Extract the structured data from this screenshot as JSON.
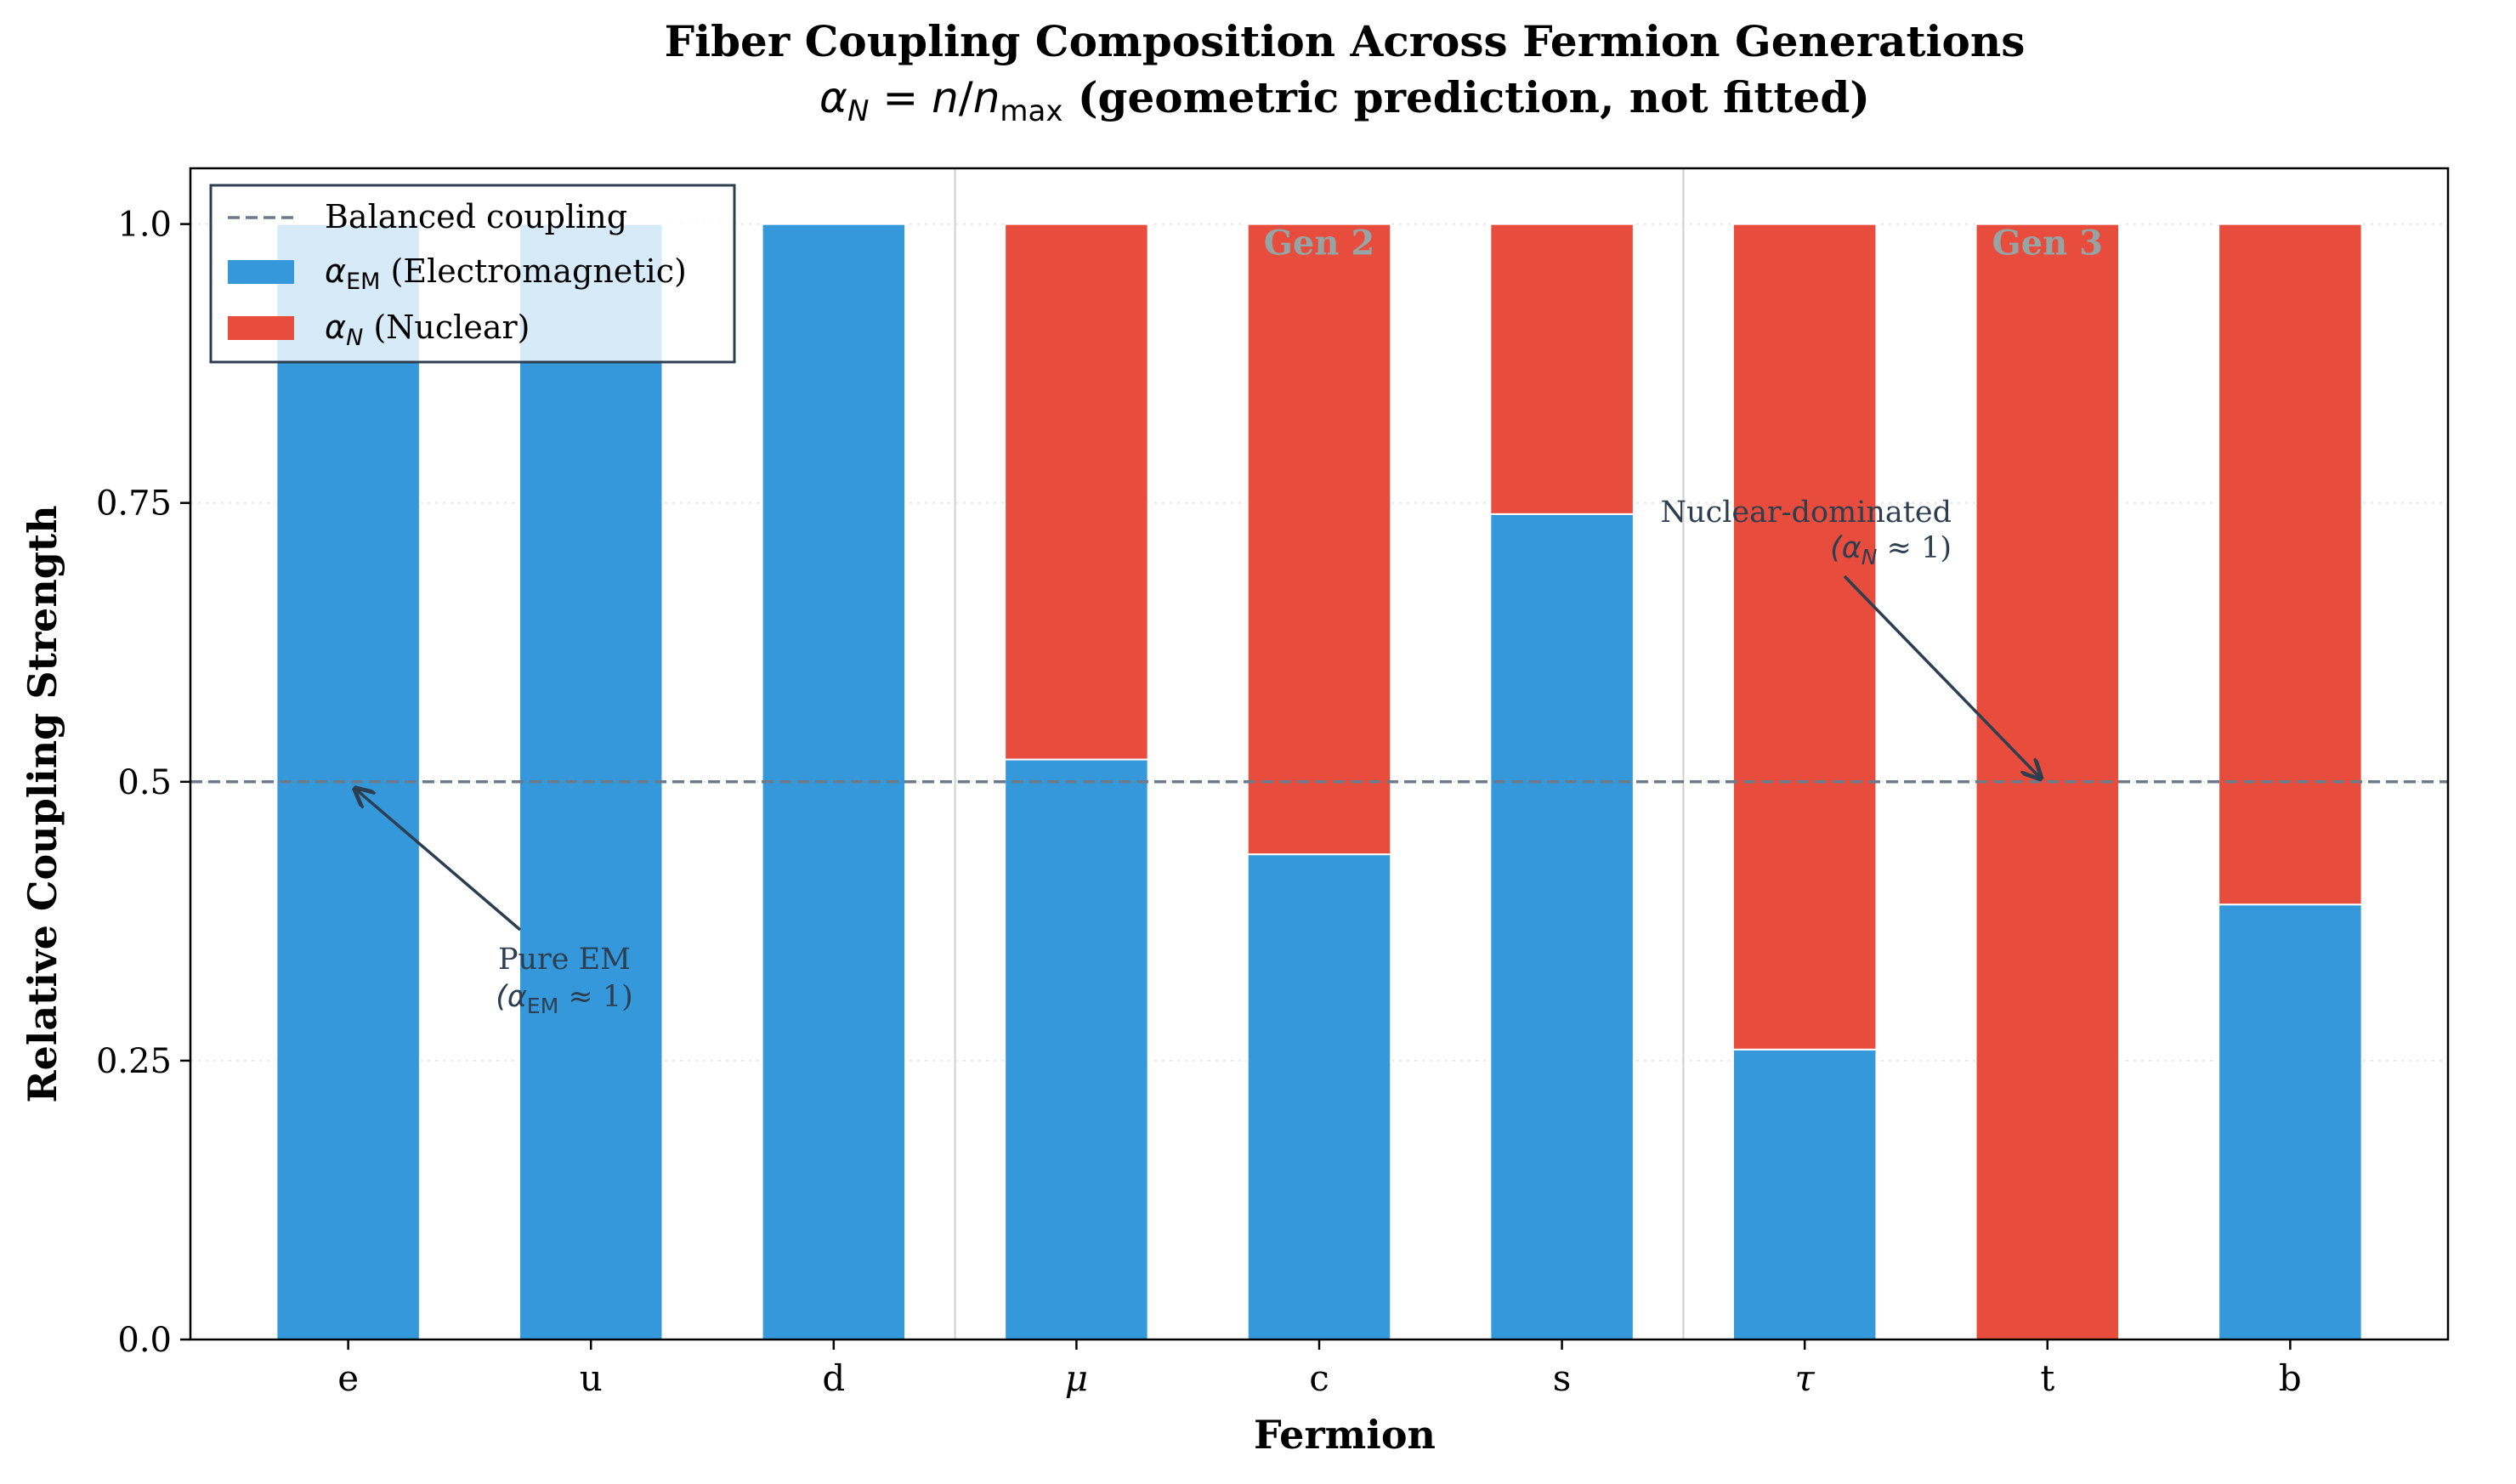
{
  "colors": {
    "em": "#3598db",
    "nuclear": "#e74c3c",
    "balanced_line": "#6c7a89",
    "generation_divider": "#d0d0d0",
    "gen_label": "#95a5a6",
    "annotation": "#2c3e50",
    "grid": "#e8e8e8",
    "axis": "#000000"
  },
  "chart_data": {
    "type": "bar",
    "stacked": true,
    "title": "Fiber Coupling Composition Across Fermion Generations",
    "subtitle_math": "αN = n/nmax",
    "subtitle_text": " (geometric prediction, not fitted)",
    "xlabel": "Fermion",
    "ylabel": "Relative Coupling Strength",
    "ylim": [
      0,
      1.05
    ],
    "yticks": [
      0.0,
      0.25,
      0.5,
      0.75,
      1.0
    ],
    "ytick_labels": [
      "0.0",
      "0.25",
      "0.5",
      "0.75",
      "1.0"
    ],
    "grid": "horizontal dotted",
    "categories": [
      "e",
      "u",
      "d",
      "μ",
      "c",
      "s",
      "τ",
      "t",
      "b"
    ],
    "series": [
      {
        "name": "αEM (Electromagnetic)",
        "values": [
          1.0,
          1.0,
          1.0,
          0.52,
          0.435,
          0.74,
          0.26,
          0.0,
          0.39
        ]
      },
      {
        "name": "αN (Nuclear)",
        "values": [
          0.0,
          0.0,
          0.0,
          0.48,
          0.565,
          0.26,
          0.74,
          1.0,
          0.61
        ]
      }
    ],
    "reference_line": {
      "name": "Balanced coupling",
      "value": 0.5,
      "style": "dashed"
    },
    "generation_dividers_after_index": [
      2,
      5
    ],
    "generation_labels": [
      {
        "text": "Gen 2",
        "category_index": 4,
        "y": 0.985
      },
      {
        "text": "Gen 3",
        "category_index": 7,
        "y": 0.985
      }
    ],
    "annotations": [
      {
        "line1": "Pure EM",
        "line2": "(αEM ≈ 1)",
        "target_index": 0,
        "target_y": 0.5
      },
      {
        "line1": "Nuclear-dominated",
        "line2": "(αN ≈ 1)",
        "target_index": 7,
        "target_y": 0.5
      }
    ],
    "legend": {
      "position": "top-left",
      "entries": [
        "Balanced coupling",
        "αEM (Electromagnetic)",
        "αN (Nuclear)"
      ]
    }
  }
}
